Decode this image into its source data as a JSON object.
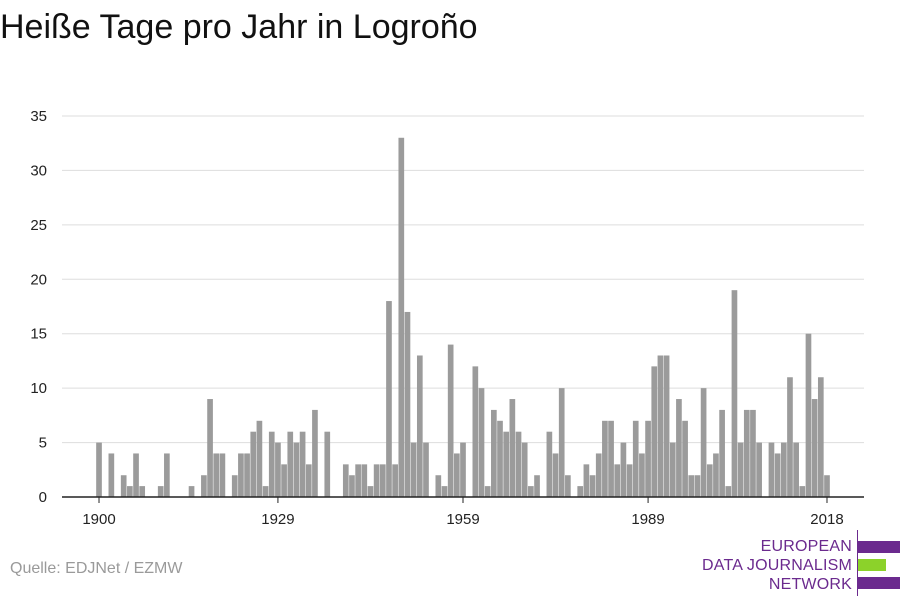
{
  "title": "Heiße Tage pro Jahr in Logroño",
  "source": "Quelle: EDJNet / EZMW",
  "logo": {
    "line1": "EUROPEAN",
    "line2": "DATA JOURNALISM",
    "line3": "NETWORK",
    "purple": "#6b2a8e",
    "green": "#8cd22a"
  },
  "chart_data": {
    "type": "bar",
    "title": "Heiße Tage pro Jahr in Logroño",
    "xlabel": "",
    "ylabel": "",
    "bar_color": "#9b9b9b",
    "grid": true,
    "x_ticks": [
      1900,
      1929,
      1959,
      1989,
      2018
    ],
    "y_ticks": [
      0,
      5,
      10,
      15,
      20,
      25,
      30,
      35
    ],
    "ylim": [
      0,
      35
    ],
    "xlim": [
      1894,
      2024
    ],
    "categories": [
      1900,
      1901,
      1902,
      1903,
      1904,
      1905,
      1906,
      1907,
      1908,
      1909,
      1910,
      1911,
      1912,
      1913,
      1914,
      1915,
      1916,
      1917,
      1918,
      1919,
      1920,
      1921,
      1922,
      1923,
      1924,
      1925,
      1926,
      1927,
      1928,
      1929,
      1930,
      1931,
      1932,
      1933,
      1934,
      1935,
      1936,
      1937,
      1938,
      1939,
      1940,
      1941,
      1942,
      1943,
      1944,
      1945,
      1946,
      1947,
      1948,
      1949,
      1950,
      1951,
      1952,
      1953,
      1954,
      1955,
      1956,
      1957,
      1958,
      1959,
      1960,
      1961,
      1962,
      1963,
      1964,
      1965,
      1966,
      1967,
      1968,
      1969,
      1970,
      1971,
      1972,
      1973,
      1974,
      1975,
      1976,
      1977,
      1978,
      1979,
      1980,
      1981,
      1982,
      1983,
      1984,
      1985,
      1986,
      1987,
      1988,
      1989,
      1990,
      1991,
      1992,
      1993,
      1994,
      1995,
      1996,
      1997,
      1998,
      1999,
      2000,
      2001,
      2002,
      2003,
      2004,
      2005,
      2006,
      2007,
      2008,
      2009,
      2010,
      2011,
      2012,
      2013,
      2014,
      2015,
      2016,
      2017,
      2018,
      2019
    ],
    "values": [
      5,
      0,
      4,
      0,
      2,
      1,
      4,
      1,
      0,
      0,
      1,
      4,
      0,
      0,
      0,
      1,
      0,
      2,
      9,
      4,
      4,
      0,
      2,
      4,
      4,
      6,
      7,
      1,
      6,
      5,
      3,
      6,
      5,
      6,
      3,
      8,
      0,
      6,
      0,
      0,
      3,
      2,
      3,
      3,
      1,
      3,
      3,
      18,
      3,
      33,
      17,
      5,
      13,
      5,
      0,
      2,
      1,
      14,
      4,
      5,
      0,
      12,
      10,
      1,
      8,
      7,
      6,
      9,
      6,
      5,
      1,
      2,
      0,
      6,
      4,
      10,
      2,
      0,
      1,
      3,
      2,
      4,
      7,
      7,
      3,
      5,
      3,
      7,
      4,
      7,
      12,
      13,
      13,
      5,
      9,
      7,
      2,
      2,
      10,
      3,
      4,
      8,
      1,
      19,
      5,
      8,
      8,
      5,
      0,
      5,
      4,
      5,
      11,
      5,
      1,
      15,
      9,
      11,
      2,
      0
    ]
  }
}
